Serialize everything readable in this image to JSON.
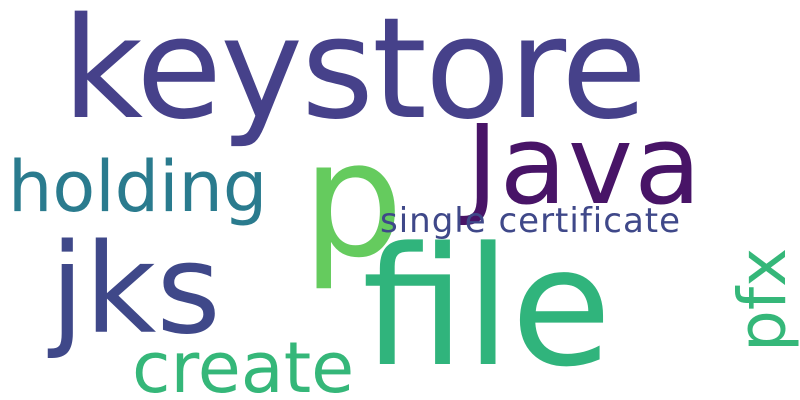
{
  "words": {
    "keystore": {
      "text": "keystore",
      "color": "#46418a"
    },
    "java": {
      "text": "Java",
      "color": "#481467"
    },
    "holding": {
      "text": "holding",
      "color": "#2a7b8e"
    },
    "p": {
      "text": "p",
      "color": "#65cb5e"
    },
    "single_certificate": {
      "text": "single certificate",
      "color": "#3f4889"
    },
    "jks": {
      "text": "jks",
      "color": "#3f4889"
    },
    "file": {
      "text": "file",
      "color": "#30b47c"
    },
    "pfx": {
      "text": "pfx",
      "color": "#35b779"
    },
    "create": {
      "text": "create",
      "color": "#35b779"
    }
  }
}
